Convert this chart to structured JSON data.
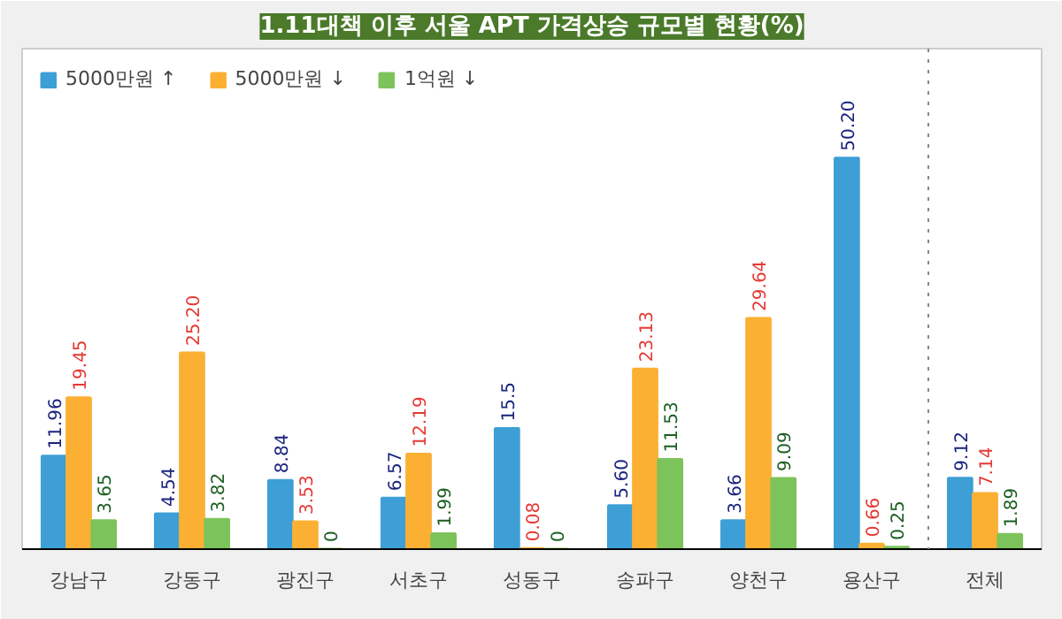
{
  "chart_data": {
    "type": "bar",
    "title": "1.11대책 이후 서울 APT 가격상승 규모별 현황(%)",
    "categories": [
      "강남구",
      "강동구",
      "광진구",
      "서초구",
      "성동구",
      "송파구",
      "양천구",
      "용산구",
      "전체"
    ],
    "series": [
      {
        "name": "5000만원 ↑",
        "color": "#3d9fd6",
        "values": [
          11.96,
          4.54,
          8.84,
          6.57,
          15.5,
          5.6,
          3.66,
          50.2,
          9.12
        ],
        "value_labels": [
          "11.96",
          "4.54",
          "8.84",
          "6.57",
          "15.5",
          "5.60",
          "3.66",
          "50.20",
          "9.12"
        ]
      },
      {
        "name": "5000만원 ↓",
        "color": "#fbb033",
        "values": [
          19.45,
          25.2,
          3.53,
          12.19,
          0.08,
          23.13,
          29.64,
          0.66,
          7.14
        ],
        "value_labels": [
          "19.45",
          "25.20",
          "3.53",
          "12.19",
          "0.08",
          "23.13",
          "29.64",
          "0.66",
          "7.14"
        ]
      },
      {
        "name": "1억원 ↓",
        "color": "#7dc35b",
        "values": [
          3.65,
          3.82,
          0,
          1.99,
          0,
          11.53,
          9.09,
          0.25,
          1.89
        ],
        "value_labels": [
          "3.65",
          "3.82",
          "0",
          "1.99",
          "0",
          "11.53",
          "9.09",
          "0.25",
          "1.89"
        ]
      }
    ],
    "legend": "top left",
    "grid": false
  }
}
